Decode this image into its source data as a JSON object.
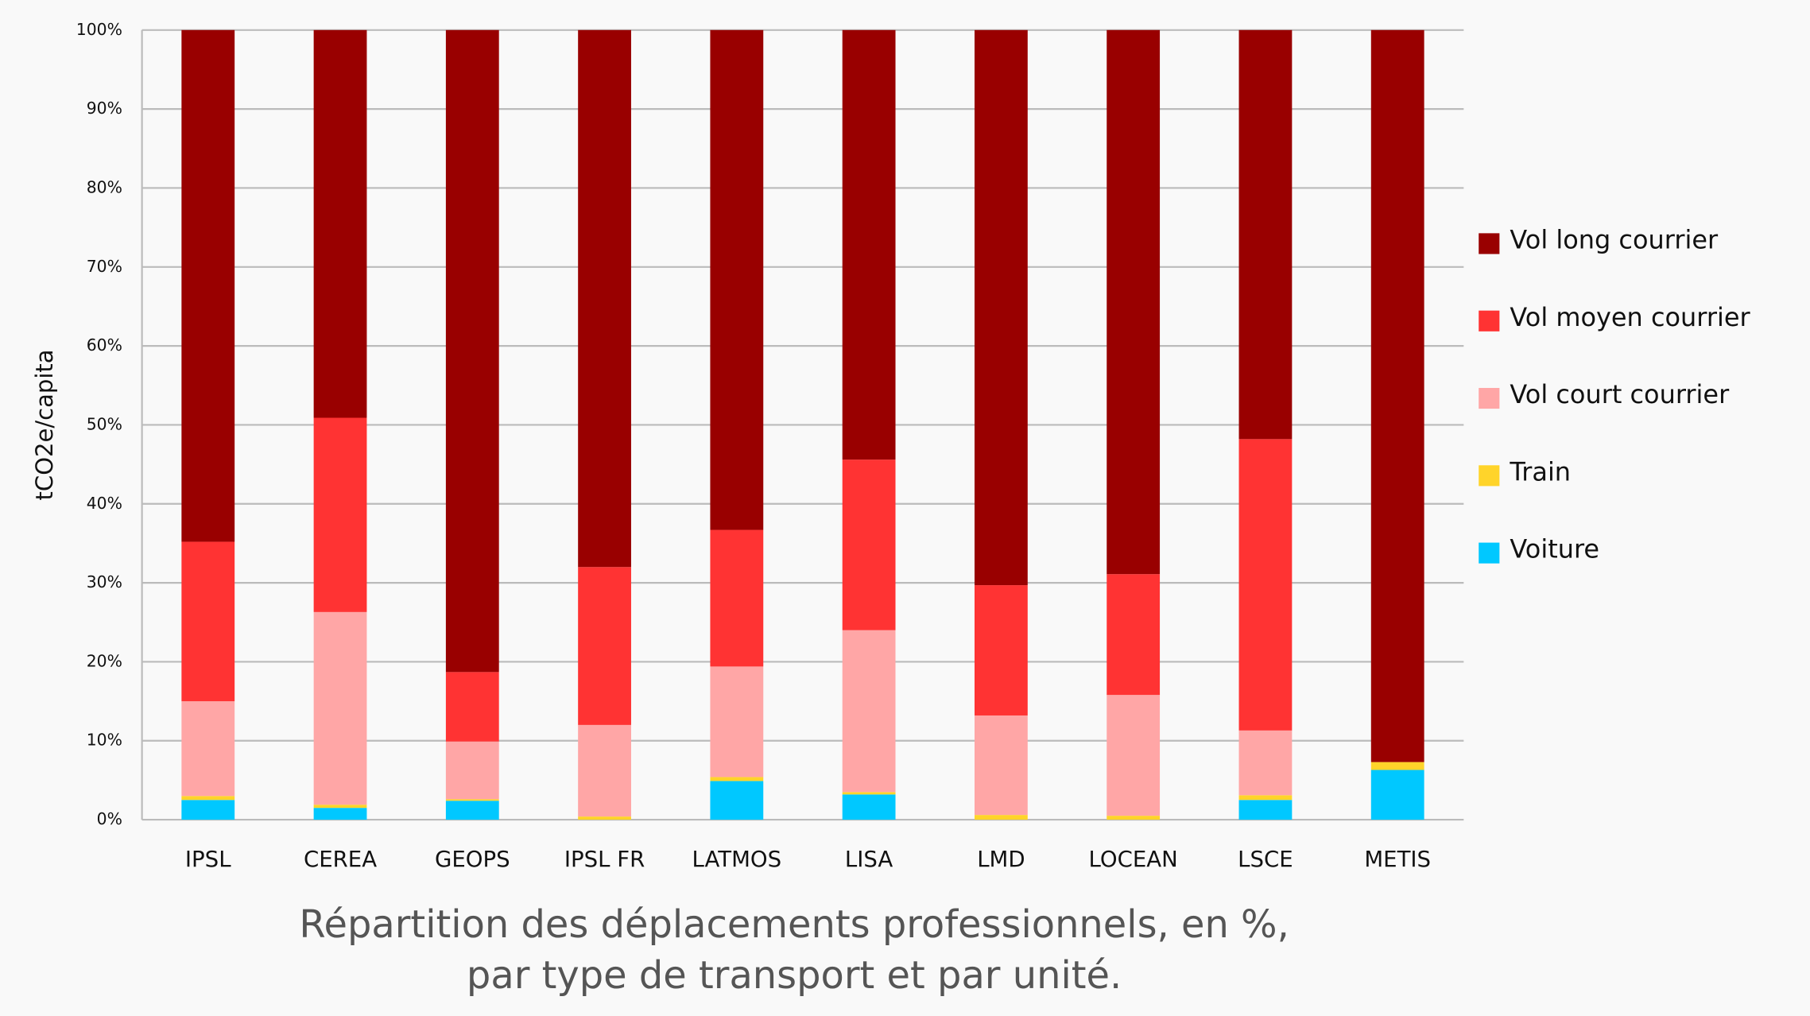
{
  "chart_data": {
    "type": "stacked_bar",
    "title": [
      "Répartition des déplacements professionnels, en %,",
      "par type de transport et par unité."
    ],
    "y_label": "tCO2e/capita",
    "categories": [
      "IPSL",
      "CEREA",
      "GEOPS",
      "IPSL FR",
      "LATMOS",
      "LISA",
      "LMD",
      "LOCEAN",
      "LSCE",
      "METIS"
    ],
    "series": [
      {
        "name": "Voiture",
        "color": "#00c8ff",
        "values": [
          2.5,
          1.5,
          2.4,
          0,
          4.9,
          3.2,
          0,
          0,
          2.5,
          6.3
        ]
      },
      {
        "name": "Train",
        "color": "#ffd42a",
        "values": [
          0.5,
          0.4,
          0.2,
          0.4,
          0.5,
          0.3,
          0.6,
          0.5,
          0.6,
          1.0
        ]
      },
      {
        "name": "Vol court courrier",
        "color": "#ffa6a6",
        "values": [
          12.0,
          24.4,
          7.3,
          11.6,
          14.0,
          20.5,
          12.6,
          15.3,
          8.2,
          0
        ]
      },
      {
        "name": "Vol moyen courrier",
        "color": "#ff3333",
        "values": [
          20.2,
          24.6,
          8.8,
          20.0,
          17.3,
          21.6,
          16.5,
          15.3,
          36.9,
          0
        ]
      },
      {
        "name": "Vol long courrier",
        "color": "#990000",
        "values": [
          64.8,
          49.1,
          81.3,
          68.0,
          63.3,
          54.4,
          70.3,
          68.9,
          51.8,
          92.7
        ]
      }
    ],
    "ylim": [
      0,
      100
    ],
    "yticks": [
      {
        "value": 0,
        "label": "0%"
      },
      {
        "value": 10,
        "label": "10%"
      },
      {
        "value": 20,
        "label": "20%"
      },
      {
        "value": 30,
        "label": "30%"
      },
      {
        "value": 40,
        "label": "40%"
      },
      {
        "value": 50,
        "label": "50%"
      },
      {
        "value": 60,
        "label": "60%"
      },
      {
        "value": 70,
        "label": "70%"
      },
      {
        "value": 80,
        "label": "80%"
      },
      {
        "value": 90,
        "label": "90%"
      },
      {
        "value": 100,
        "label": "100%"
      }
    ],
    "grid": true,
    "legend": "right"
  }
}
